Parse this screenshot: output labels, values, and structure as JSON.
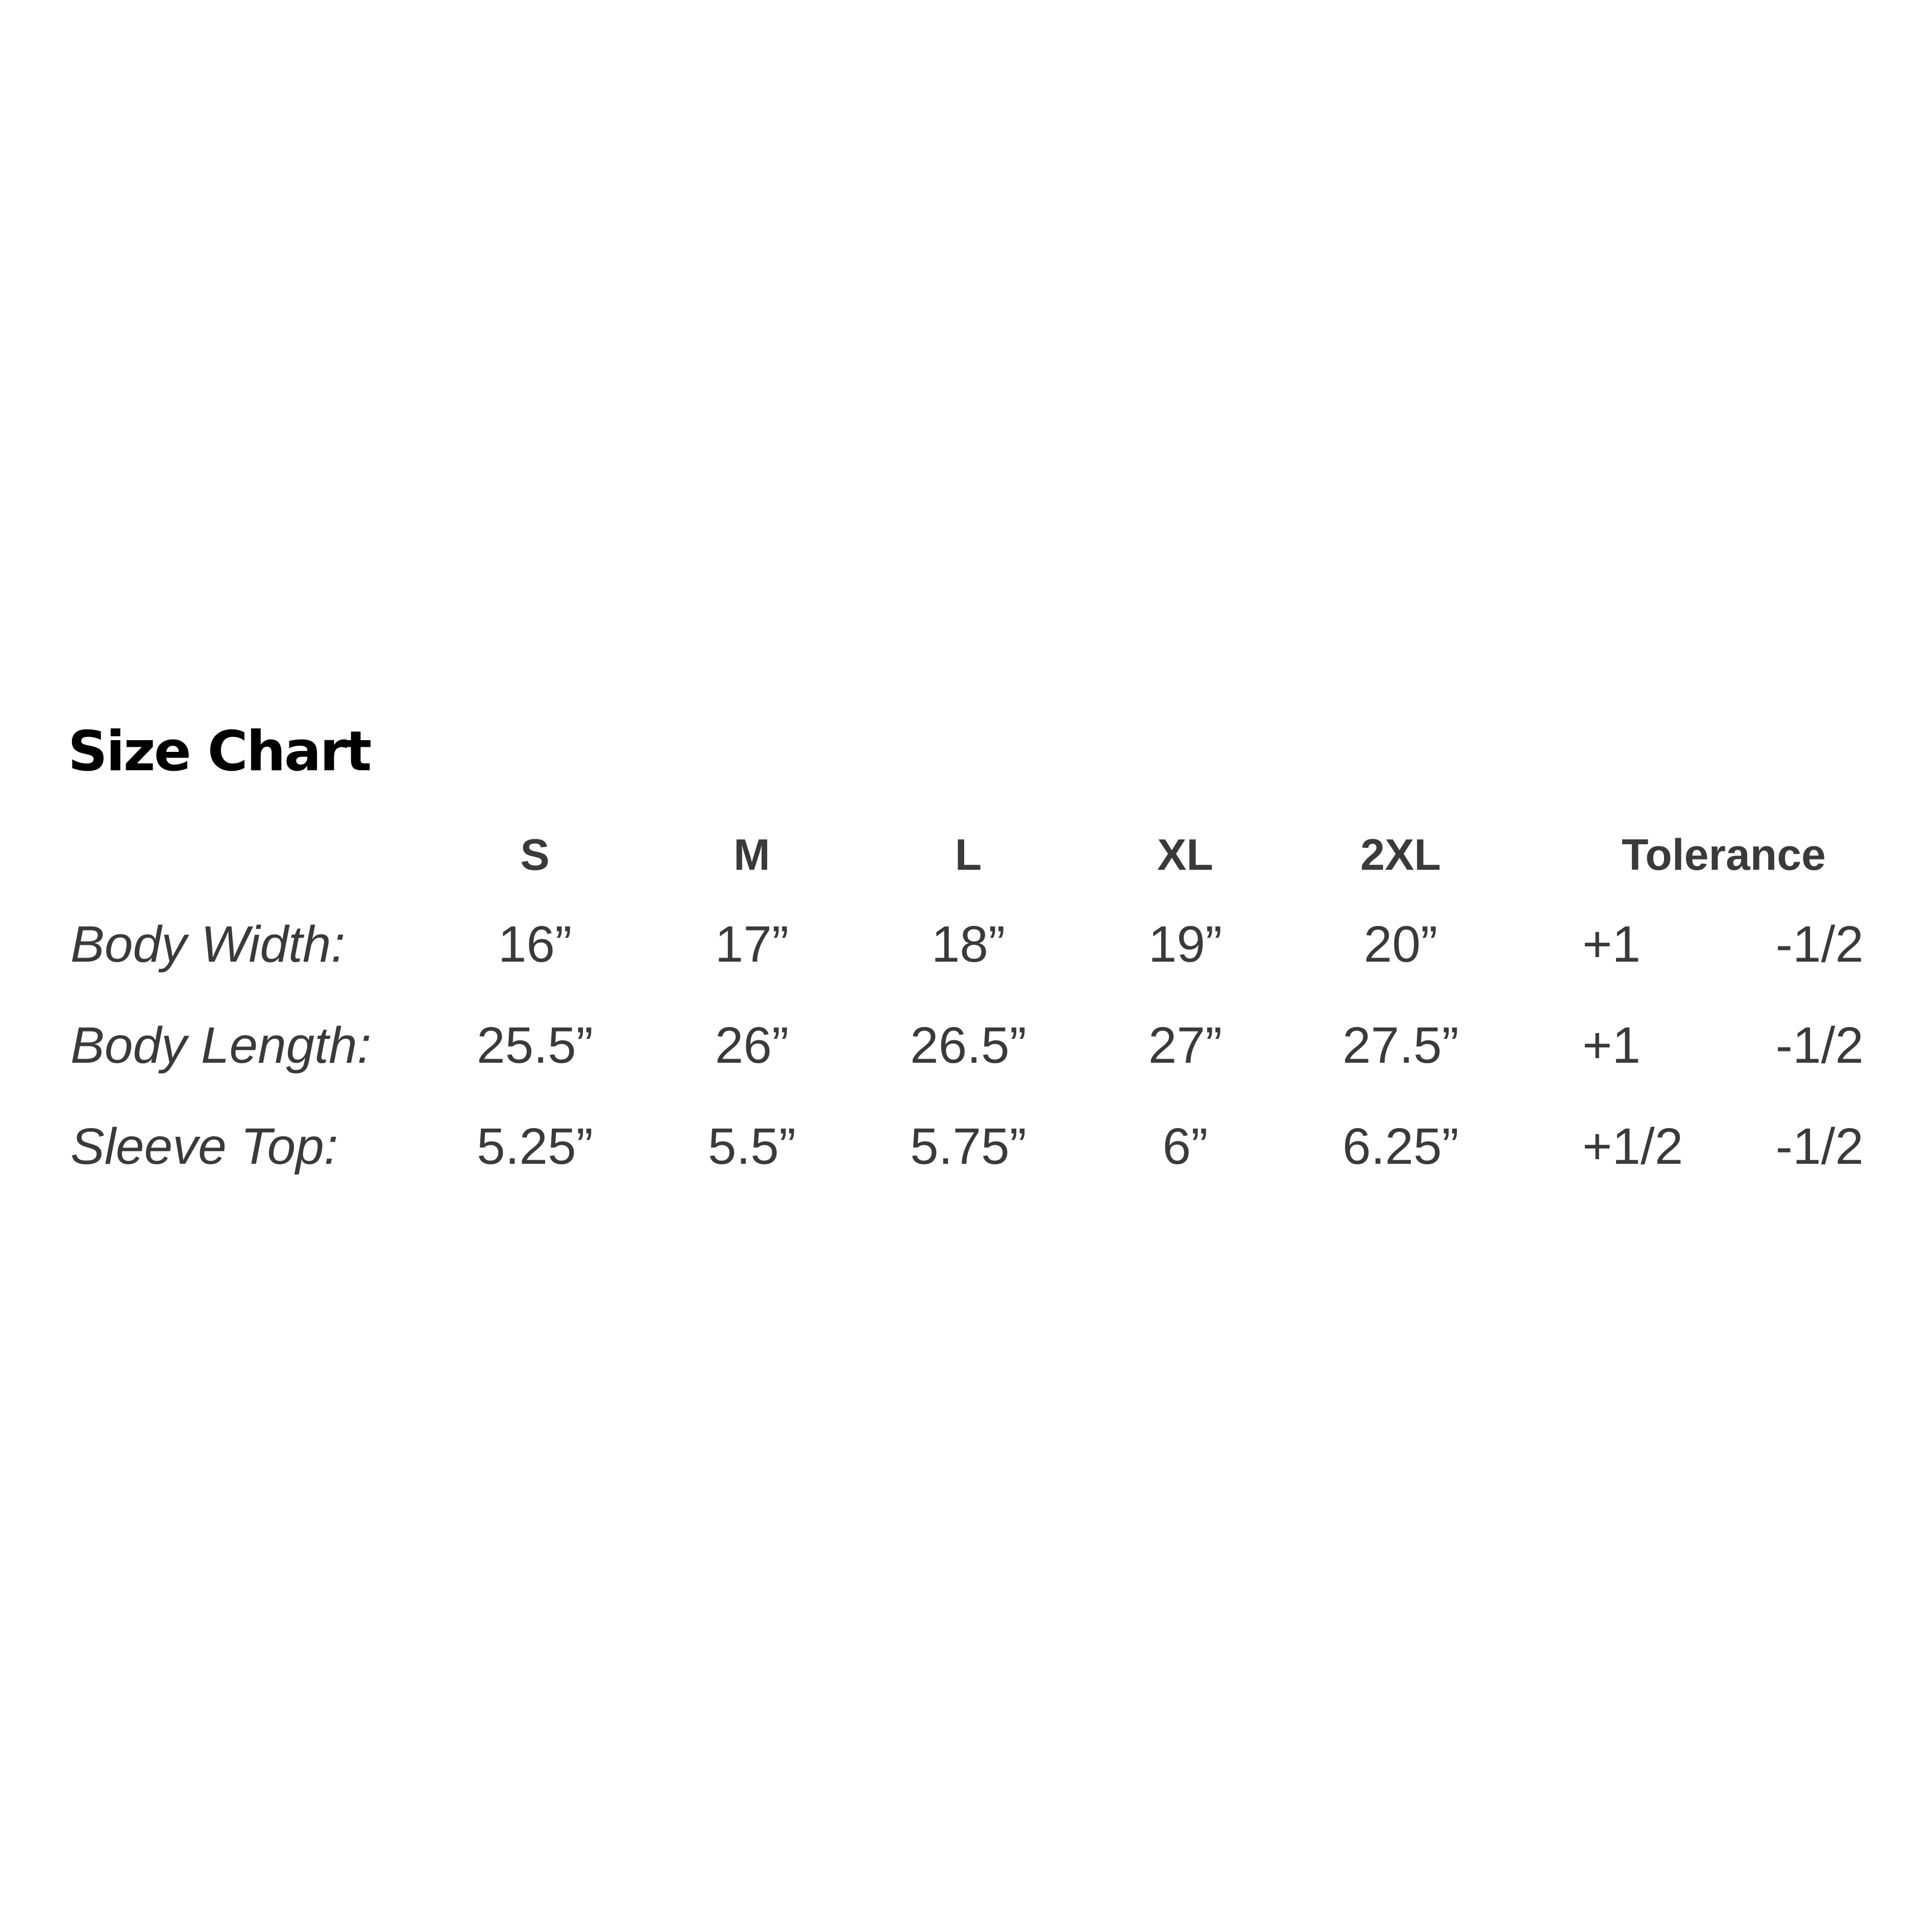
{
  "title": "Size Chart",
  "table": {
    "headers": [
      "S",
      "M",
      "L",
      "XL",
      "2XL"
    ],
    "tolerance_header": "Tolerance",
    "rows": [
      {
        "label": "Body Width:",
        "values": [
          "16”",
          "17”",
          "18”",
          "19”",
          "20”"
        ],
        "tol_plus": "+1",
        "tol_minus": "-1/2"
      },
      {
        "label": "Body Length:",
        "values": [
          "25.5”",
          "26”",
          "26.5”",
          "27”",
          "27.5”"
        ],
        "tol_plus": "+1",
        "tol_minus": "-1/2"
      },
      {
        "label": "Sleeve Top:",
        "values": [
          "5.25”",
          "5.5”",
          "5.75”",
          "6”",
          "6.25”"
        ],
        "tol_plus": "+1/2",
        "tol_minus": "-1/2"
      }
    ]
  },
  "colors": {
    "title": "#000000",
    "table_text": "#3a3a3a",
    "background": "#ffffff"
  }
}
